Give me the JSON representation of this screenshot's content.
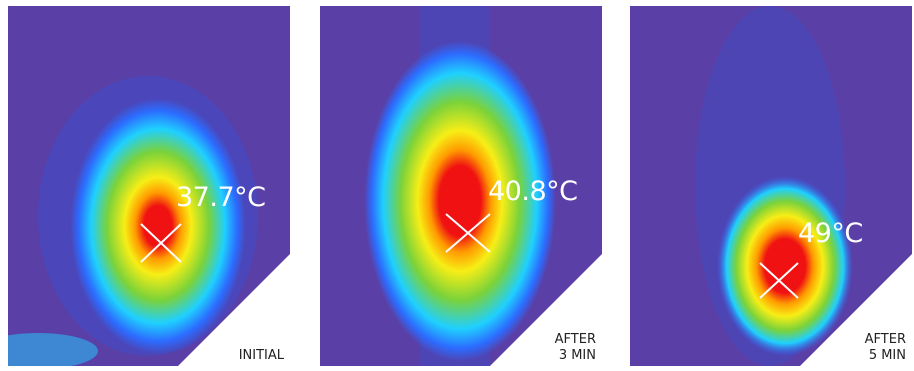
{
  "panels": [
    {
      "temperature": "37.7°C",
      "caption_lines": [
        "INITIAL"
      ]
    },
    {
      "temperature": "40.8°C",
      "caption_lines": [
        "AFTER",
        "3 MIN"
      ]
    },
    {
      "temperature": "49°C",
      "caption_lines": [
        "AFTER",
        "5 MIN"
      ]
    }
  ],
  "colors": {
    "background": "#5a3fa6",
    "cool": "#2c6cff",
    "cyan": "#1fd0ff",
    "green": "#7bd23a",
    "yellow": "#f7ee16",
    "orange": "#ff9a00",
    "hot": "#f01212",
    "marker": "#ffffff"
  }
}
